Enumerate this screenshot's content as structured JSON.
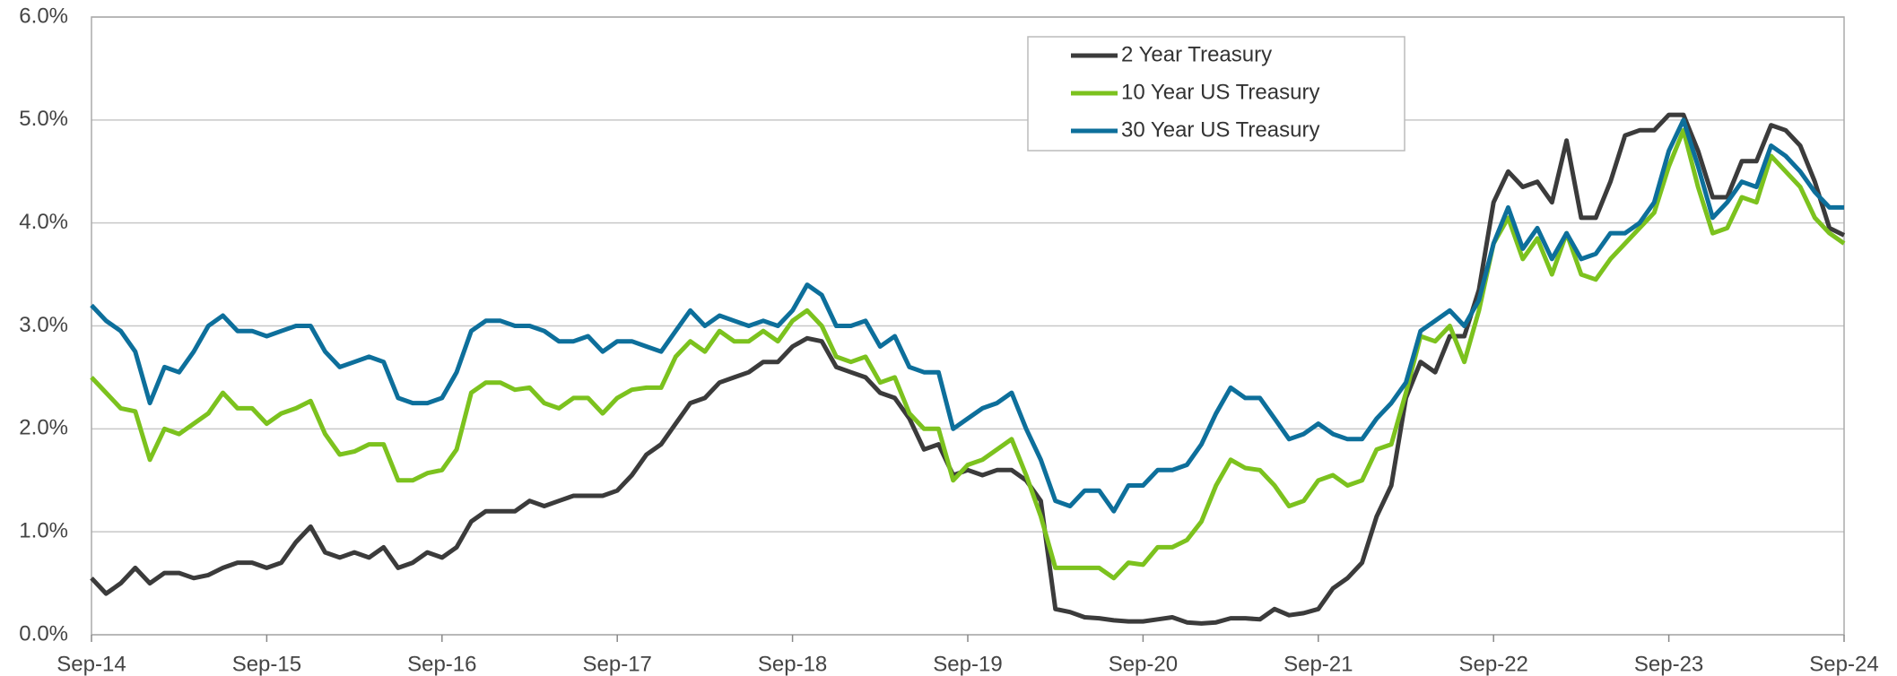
{
  "chart_data": {
    "type": "line",
    "categories": [
      "Sep-14",
      null,
      null,
      null,
      null,
      null,
      null,
      null,
      null,
      null,
      null,
      null,
      "Sep-15",
      null,
      null,
      null,
      null,
      null,
      null,
      null,
      null,
      null,
      null,
      null,
      "Sep-16",
      null,
      null,
      null,
      null,
      null,
      null,
      null,
      null,
      null,
      null,
      null,
      "Sep-17",
      null,
      null,
      null,
      null,
      null,
      null,
      null,
      null,
      null,
      null,
      null,
      "Sep-18",
      null,
      null,
      null,
      null,
      null,
      null,
      null,
      null,
      null,
      null,
      null,
      "Sep-19",
      null,
      null,
      null,
      null,
      null,
      null,
      null,
      null,
      null,
      null,
      null,
      "Sep-20",
      null,
      null,
      null,
      null,
      null,
      null,
      null,
      null,
      null,
      null,
      null,
      "Sep-21",
      null,
      null,
      null,
      null,
      null,
      null,
      null,
      null,
      null,
      null,
      null,
      "Sep-22",
      null,
      null,
      null,
      null,
      null,
      null,
      null,
      null,
      null,
      null,
      null,
      "Sep-23",
      null,
      null,
      null,
      null,
      null,
      null,
      null,
      null,
      null,
      null,
      null,
      "Sep-24"
    ],
    "series": [
      {
        "name": "2 Year Treasury",
        "color": "#3b3b3b",
        "values": [
          0.55,
          0.4,
          0.5,
          0.65,
          0.5,
          0.6,
          0.6,
          0.55,
          0.58,
          0.65,
          0.7,
          0.7,
          0.65,
          0.7,
          0.9,
          1.05,
          0.8,
          0.75,
          0.8,
          0.75,
          0.85,
          0.65,
          0.7,
          0.8,
          0.75,
          0.85,
          1.1,
          1.2,
          1.2,
          1.2,
          1.3,
          1.25,
          1.3,
          1.35,
          1.35,
          1.35,
          1.4,
          1.55,
          1.75,
          1.85,
          2.05,
          2.25,
          2.3,
          2.45,
          2.5,
          2.55,
          2.65,
          2.65,
          2.8,
          2.88,
          2.85,
          2.6,
          2.55,
          2.5,
          2.35,
          2.3,
          2.1,
          1.8,
          1.85,
          1.55,
          1.6,
          1.55,
          1.6,
          1.6,
          1.5,
          1.3,
          0.25,
          0.22,
          0.17,
          0.16,
          0.14,
          0.13,
          0.13,
          0.15,
          0.17,
          0.12,
          0.11,
          0.12,
          0.16,
          0.16,
          0.15,
          0.25,
          0.19,
          0.21,
          0.25,
          0.45,
          0.55,
          0.7,
          1.15,
          1.45,
          2.3,
          2.65,
          2.55,
          2.9,
          2.9,
          3.35,
          4.2,
          4.5,
          4.35,
          4.4,
          4.2,
          4.8,
          4.05,
          4.05,
          4.4,
          4.85,
          4.9,
          4.9,
          5.05,
          5.05,
          4.7,
          4.25,
          4.25,
          4.6,
          4.6,
          4.95,
          4.9,
          4.75,
          4.4,
          3.95,
          3.88
        ]
      },
      {
        "name": "10 Year US Treasury",
        "color": "#7cc21e",
        "values": [
          2.5,
          2.35,
          2.2,
          2.17,
          1.7,
          2.0,
          1.95,
          2.05,
          2.15,
          2.35,
          2.2,
          2.2,
          2.05,
          2.15,
          2.2,
          2.27,
          1.95,
          1.75,
          1.78,
          1.85,
          1.85,
          1.5,
          1.5,
          1.57,
          1.6,
          1.8,
          2.35,
          2.45,
          2.45,
          2.38,
          2.4,
          2.25,
          2.2,
          2.3,
          2.3,
          2.15,
          2.3,
          2.38,
          2.4,
          2.4,
          2.7,
          2.85,
          2.75,
          2.95,
          2.85,
          2.85,
          2.95,
          2.85,
          3.05,
          3.15,
          3.0,
          2.7,
          2.65,
          2.7,
          2.45,
          2.5,
          2.15,
          2.0,
          2.0,
          1.5,
          1.65,
          1.7,
          1.8,
          1.9,
          1.55,
          1.15,
          0.65,
          0.65,
          0.65,
          0.65,
          0.55,
          0.7,
          0.68,
          0.85,
          0.85,
          0.92,
          1.1,
          1.45,
          1.7,
          1.62,
          1.6,
          1.45,
          1.25,
          1.3,
          1.5,
          1.55,
          1.45,
          1.5,
          1.8,
          1.85,
          2.35,
          2.9,
          2.85,
          3.0,
          2.65,
          3.15,
          3.8,
          4.05,
          3.65,
          3.85,
          3.5,
          3.9,
          3.5,
          3.45,
          3.65,
          3.8,
          3.95,
          4.1,
          4.55,
          4.9,
          4.35,
          3.9,
          3.95,
          4.25,
          4.2,
          4.65,
          4.5,
          4.35,
          4.05,
          3.9,
          3.8
        ]
      },
      {
        "name": "30 Year US Treasury",
        "color": "#0d6f9b",
        "values": [
          3.2,
          3.05,
          2.95,
          2.75,
          2.25,
          2.6,
          2.55,
          2.75,
          3.0,
          3.1,
          2.95,
          2.95,
          2.9,
          2.95,
          3.0,
          3.0,
          2.75,
          2.6,
          2.65,
          2.7,
          2.65,
          2.3,
          2.25,
          2.25,
          2.3,
          2.55,
          2.95,
          3.05,
          3.05,
          3.0,
          3.0,
          2.95,
          2.85,
          2.85,
          2.9,
          2.75,
          2.85,
          2.85,
          2.8,
          2.75,
          2.95,
          3.15,
          3.0,
          3.1,
          3.05,
          3.0,
          3.05,
          3.0,
          3.15,
          3.4,
          3.3,
          3.0,
          3.0,
          3.05,
          2.8,
          2.9,
          2.6,
          2.55,
          2.55,
          2.0,
          2.1,
          2.2,
          2.25,
          2.35,
          2.0,
          1.7,
          1.3,
          1.25,
          1.4,
          1.4,
          1.2,
          1.45,
          1.45,
          1.6,
          1.6,
          1.65,
          1.85,
          2.15,
          2.4,
          2.3,
          2.3,
          2.1,
          1.9,
          1.95,
          2.05,
          1.95,
          1.9,
          1.9,
          2.1,
          2.25,
          2.45,
          2.95,
          3.05,
          3.15,
          3.0,
          3.25,
          3.8,
          4.15,
          3.75,
          3.95,
          3.65,
          3.9,
          3.65,
          3.7,
          3.9,
          3.9,
          4.0,
          4.2,
          4.7,
          5.0,
          4.55,
          4.05,
          4.2,
          4.4,
          4.35,
          4.75,
          4.65,
          4.5,
          4.3,
          4.15,
          4.15
        ]
      }
    ],
    "ylim": [
      0,
      6
    ],
    "yticks": [
      {
        "value": 0,
        "label": "0.0%"
      },
      {
        "value": 1,
        "label": "1.0%"
      },
      {
        "value": 2,
        "label": "2.0%"
      },
      {
        "value": 3,
        "label": "3.0%"
      },
      {
        "value": 4,
        "label": "4.0%"
      },
      {
        "value": 5,
        "label": "5.0%"
      },
      {
        "value": 6,
        "label": "6.0%"
      }
    ],
    "grid": true,
    "legend": "top-center"
  }
}
